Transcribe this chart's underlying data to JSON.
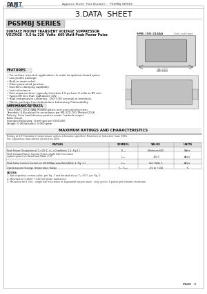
{
  "bg_color": "#ffffff",
  "title": "3.DATA  SHEET",
  "series_title": "P6SMBJ SERIES",
  "series_bg": "#c0c0c0",
  "subtitle1": "SURFACE MOUNT TRANSIENT VOLTAGE SUPPRESSOR",
  "subtitle2": "VOLTAGE - 5.0 to 220  Volts  600 Watt Peak Power Pulse",
  "features_title": "FEATURES",
  "features": [
    "• For surface mounted applications in order to optimize board space.",
    "• Low profile package.",
    "• Built-in strain relief.",
    "• Glass passivated junction.",
    "• Excellent clamping capability.",
    "• Low inductance.",
    "• Fast response time: typically less than 1.0 ps from 0 volts to BV min.",
    "• Typical IR less than 1μA above 10V.",
    "• High temperature soldering : 250°C/10 seconds at terminals.",
    "• Plastic package has Underwriters Laboratory Flammability",
    "   Classification 94V-0."
  ],
  "mech_title": "MECHANICAL DATA",
  "mech": [
    "Case: JEDEC DO-214AA. Molded plastic over passivated junction.",
    "Terminals: 8.4(μ plated) in accordance per MIL-STD-750, Method 2026.",
    "Polarity: Color band denotes positive anode ( cathode stripe).",
    "Bidirectional.",
    "Standard Packaging: 1(reel tape per (D04-48)).",
    "Weight: 0.060(pounds), 0.060 gram."
  ],
  "max_ratings_title": "MAXIMUM RATINGS AND CHARACTERISTICS",
  "notes_rating": [
    "Rating at 25°C/ambient temperature unless otherwise specified. Resistive or Inductive load, 60Hz.",
    "For Capacitive load derate current by 20%."
  ],
  "table_headers": [
    "RATING",
    "SYMBOL",
    "VALUE",
    "UNITS"
  ],
  "table_rows": [
    [
      "Peak Power Dissipation at Tₐ=25°C, αₐ₂=Conditions 1,2 ,Fig 1.)",
      "Pₚₚₘ",
      "Minimum 600",
      "Watts"
    ],
    [
      "Peak Forward Surge Current 8.3ms single half sine-wave\nsuperimposed on rated load (Note 2,3)",
      "Iₚₚₘ",
      "100.0",
      "Amps"
    ],
    [
      "Peak Pulse Current Current on 10/1000μs waveform(Note 1, Fig. 2.)",
      "Iₚₚₘ",
      "See Table 1",
      "Amps"
    ],
    [
      "Operating and Storage Temperature Range",
      "Tⱼ , Tₚₚₘ",
      "-55 to +150",
      "°C"
    ]
  ],
  "notes_title": "NOTES:",
  "notes": [
    "1. Non-repetitive current pulse, per Fig. 3 and derated above Tₐ=25°C per Fig. 2.",
    "2. Mounted on 5.0mm² (.310 mm thick) land areas.",
    "3. Measured on 8.3ms , single half sine-wave or equivalent square wave , duty cycle= 4 pulses per minutes maximum."
  ],
  "pkg_title": "SMB / DO-214AA",
  "pkg_unit": "Unit: inch (mm)",
  "page_label": "PAGE   3",
  "header_text": "Approve Sheet  Part Number :   P6SMBJ SERIES",
  "logo_color": "#2e75b6"
}
